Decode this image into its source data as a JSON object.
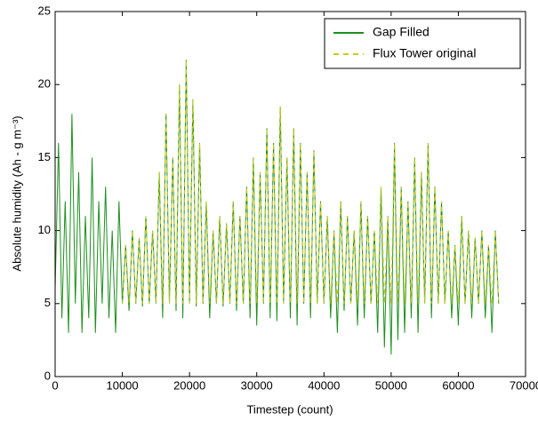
{
  "chart_data": {
    "type": "line",
    "x_label": "Timestep (count)",
    "y_label": "Absolute humidity (Ah - g m⁻³)",
    "xlim": [
      0,
      70000
    ],
    "ylim": [
      0,
      25
    ],
    "xticks": [
      0,
      10000,
      20000,
      30000,
      40000,
      50000,
      60000,
      70000
    ],
    "yticks": [
      0,
      5,
      10,
      15,
      20,
      25
    ],
    "legend": "upper right",
    "grid": false,
    "x": [
      0,
      500,
      1000,
      1500,
      2000,
      2500,
      3000,
      3500,
      4000,
      4500,
      5000,
      5500,
      6000,
      6500,
      7000,
      7500,
      8000,
      8500,
      9000,
      9500,
      10000,
      10500,
      11000,
      11500,
      12000,
      12500,
      13000,
      13500,
      14000,
      14500,
      15000,
      15500,
      16000,
      16500,
      17000,
      17500,
      18000,
      18500,
      19000,
      19500,
      20000,
      20500,
      21000,
      21500,
      22000,
      22500,
      23000,
      23500,
      24000,
      24500,
      25000,
      25500,
      26000,
      26500,
      27000,
      27500,
      28000,
      28500,
      29000,
      29500,
      30000,
      30500,
      31000,
      31500,
      32000,
      32500,
      33000,
      33500,
      34000,
      34500,
      35000,
      35500,
      36000,
      36500,
      37000,
      37500,
      38000,
      38500,
      39000,
      39500,
      40000,
      40500,
      41000,
      41500,
      42000,
      42500,
      43000,
      43500,
      44000,
      44500,
      45000,
      45500,
      46000,
      46500,
      47000,
      47500,
      48000,
      48500,
      49000,
      49500,
      50000,
      50500,
      51000,
      51500,
      52000,
      52500,
      53000,
      53500,
      54000,
      54500,
      55000,
      55500,
      56000,
      56500,
      57000,
      57500,
      58000,
      58500,
      59000,
      59500,
      60000,
      60500,
      61000,
      61500,
      62000,
      62500,
      63000,
      63500,
      64000,
      64500,
      65000,
      65500,
      66000
    ],
    "series": [
      {
        "name": "Gap Filled",
        "color": "#1e8f1e",
        "dash": false,
        "values": [
          6,
          16,
          4,
          12,
          3,
          18,
          5,
          14,
          3,
          11,
          4,
          15,
          3,
          12,
          5,
          13,
          4,
          10,
          3,
          12,
          5,
          9,
          4.5,
          10,
          5,
          9.5,
          4.8,
          11,
          5,
          10,
          5,
          14,
          4,
          18,
          5,
          15,
          4.5,
          20,
          4,
          21.7,
          5,
          19,
          4.8,
          16,
          5,
          12,
          4,
          10,
          5,
          11,
          4.8,
          10.5,
          5,
          12,
          4.5,
          11,
          5,
          13,
          4,
          15,
          3.5,
          14,
          5,
          17,
          4,
          16,
          3.8,
          18.5,
          5,
          15,
          4,
          17,
          3.5,
          16,
          5,
          14,
          4,
          15.5,
          5,
          12,
          5,
          11,
          4,
          10,
          3,
          12,
          4.5,
          11,
          5,
          10,
          3.5,
          12,
          4,
          11,
          5,
          10,
          3,
          13,
          2,
          11,
          1.5,
          16,
          2.5,
          13,
          3,
          12,
          4,
          15,
          3,
          14,
          5,
          16,
          4,
          13,
          5,
          12,
          5,
          10,
          4,
          9,
          3.5,
          11,
          5,
          10,
          4,
          9.5,
          5,
          10,
          4,
          9,
          3,
          10,
          5
        ]
      },
      {
        "name": "Flux Tower original",
        "color": "#c9c914",
        "dash": true,
        "values": [
          null,
          null,
          null,
          null,
          null,
          null,
          null,
          null,
          null,
          null,
          null,
          null,
          null,
          null,
          null,
          null,
          null,
          null,
          null,
          null,
          5,
          9,
          5,
          10,
          5,
          9.5,
          5,
          11,
          5,
          10,
          5,
          14,
          5,
          18,
          5,
          15,
          5,
          20,
          5,
          21.7,
          5,
          19,
          5,
          16,
          5,
          12,
          5,
          10,
          5,
          11,
          5,
          10.5,
          5,
          12,
          5,
          11,
          5,
          13,
          5,
          15,
          5,
          14,
          5,
          17,
          5,
          16,
          5,
          18.5,
          5,
          15,
          5,
          17,
          5,
          16,
          5,
          14,
          5,
          15.5,
          5,
          12,
          5,
          11,
          5,
          10,
          5,
          12,
          5,
          11,
          5,
          10,
          5,
          12,
          5,
          11,
          5,
          10,
          5,
          13,
          5,
          11,
          5,
          16,
          5,
          13,
          5,
          12,
          5,
          15,
          5,
          14,
          5,
          16,
          5,
          13,
          5,
          12,
          5,
          10,
          5,
          9,
          5,
          11,
          5,
          10,
          5,
          9.5,
          5,
          10,
          5,
          9,
          5,
          10,
          5
        ]
      }
    ]
  }
}
